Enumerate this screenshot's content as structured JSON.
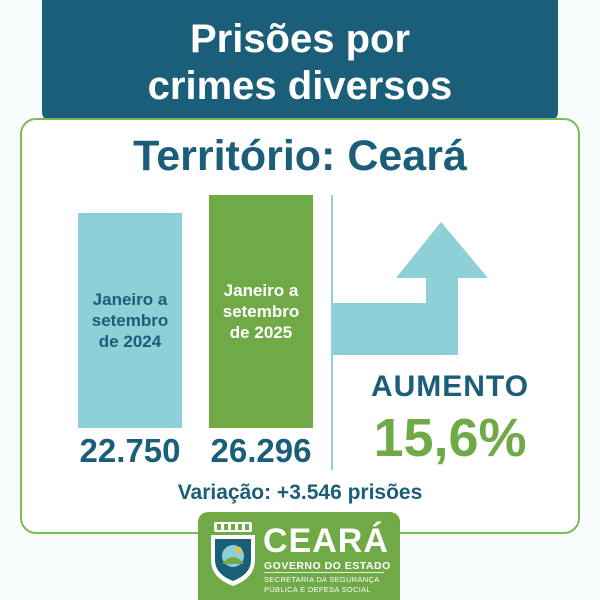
{
  "header": {
    "line1": "Prisões por",
    "line2": "crimes diversos"
  },
  "territory": "Território: Ceará",
  "chart_data": {
    "type": "bar",
    "categories": [
      "Janeiro a\nsetembro\nde 2024",
      "Janeiro a\nsetembro\nde 2025"
    ],
    "values": [
      22750,
      26296
    ],
    "value_labels": [
      "22.750",
      "26.296"
    ],
    "colors": [
      "#8dd0d8",
      "#70aa46"
    ]
  },
  "change": {
    "label": "AUMENTO",
    "percent": "15,6%",
    "variation": "Variação: +3.546 prisões"
  },
  "logo": {
    "name": "CEARÁ",
    "government": "GOVERNO DO ESTADO",
    "secretariat_line1": "SECRETARIA DA SEGURANÇA",
    "secretariat_line2": "PÚBLICA E DEFESA SOCIAL"
  },
  "colors": {
    "primary": "#1b5e79",
    "accent_green": "#70aa46",
    "accent_light": "#8dd0d8"
  }
}
